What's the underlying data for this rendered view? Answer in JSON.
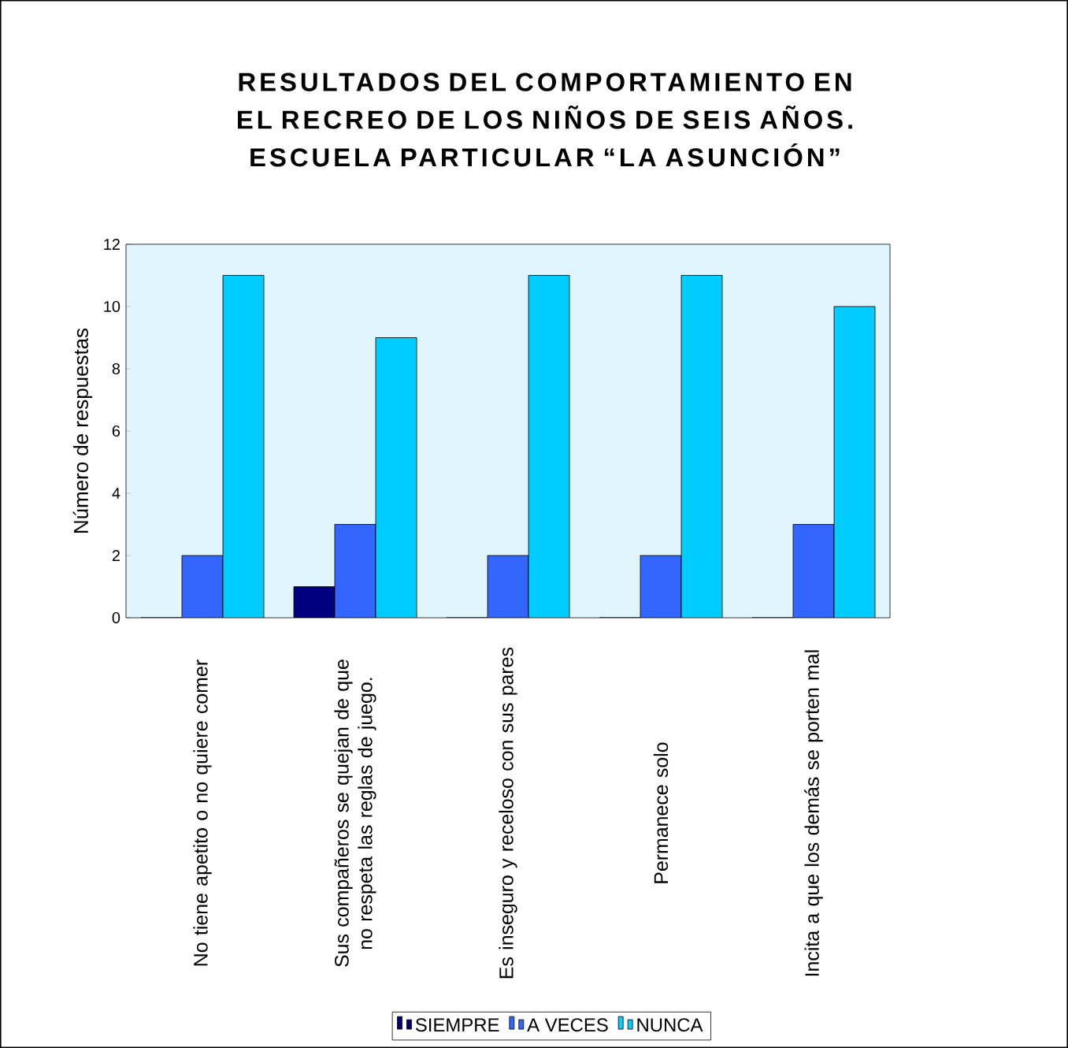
{
  "chart_data": {
    "type": "bar",
    "title": "RESULTADOS DEL COMPORTAMIENTO EN EL RECREO DE LOS NIÑOS DE SEIS AÑOS. ESCUELA PARTICULAR “LA ASUNCIÓN”",
    "ylabel": "Número de respuestas",
    "categories": [
      "No tiene apetito o no quiere comer",
      "Sus compañeros se quejan de que no respeta las reglas de juego.",
      "Es inseguro y receloso con sus pares",
      "Permanece solo",
      "Incita a que los demás se porten mal"
    ],
    "series": [
      {
        "name": "SIEMPRE",
        "color": "#000080",
        "values": [
          0,
          1,
          0,
          0,
          0
        ]
      },
      {
        "name": "A  VECES",
        "color": "#3366ff",
        "values": [
          2,
          3,
          2,
          2,
          3
        ]
      },
      {
        "name": "NUNCA",
        "color": "#00ccff",
        "values": [
          11,
          9,
          11,
          11,
          10
        ]
      }
    ],
    "ylim": [
      0,
      12
    ],
    "yticks": [
      0,
      2,
      4,
      6,
      8,
      10,
      12
    ],
    "legend": "bottom",
    "grid": false
  }
}
